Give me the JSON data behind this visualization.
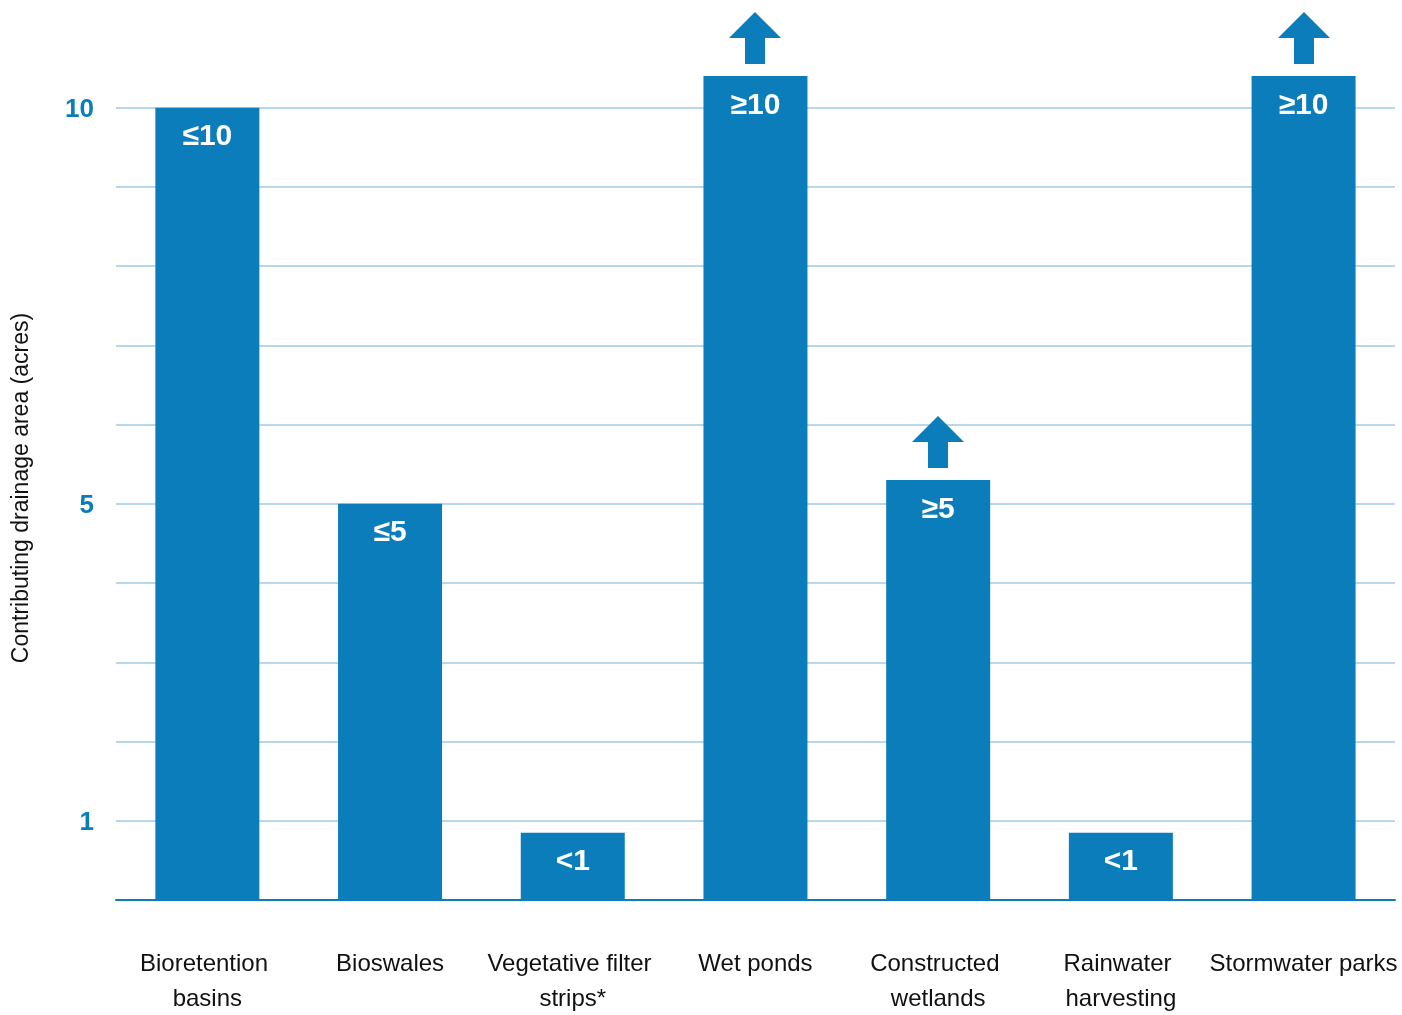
{
  "chart_data": {
    "type": "bar",
    "ylabel": "Contributing drainage area (acres)",
    "categories": [
      "Bioretention basins",
      "Bioswales",
      "Vegetative filter strips*",
      "Wet ponds",
      "Constructed wetlands",
      "Rainwater harvesting",
      "Stormwater parks"
    ],
    "values": [
      10,
      5,
      0.85,
      10.4,
      5.3,
      0.85,
      10.4
    ],
    "value_labels": [
      "≤10",
      "≤5",
      "<1",
      "≥10",
      "≥5",
      "<1",
      "≥10"
    ],
    "color": "#0b7dba",
    "ylim": [
      0,
      10.4
    ],
    "yticks": [
      {
        "value": 0,
        "label": null
      },
      1,
      {
        "value": 2,
        "label": null
      },
      {
        "value": 3,
        "label": null
      },
      {
        "value": 4,
        "label": null
      },
      5,
      {
        "value": 6,
        "label": null
      },
      {
        "value": 7,
        "label": null
      },
      {
        "value": 8,
        "label": null
      },
      {
        "value": 9,
        "label": null
      },
      10
    ],
    "grid": "y"
  }
}
